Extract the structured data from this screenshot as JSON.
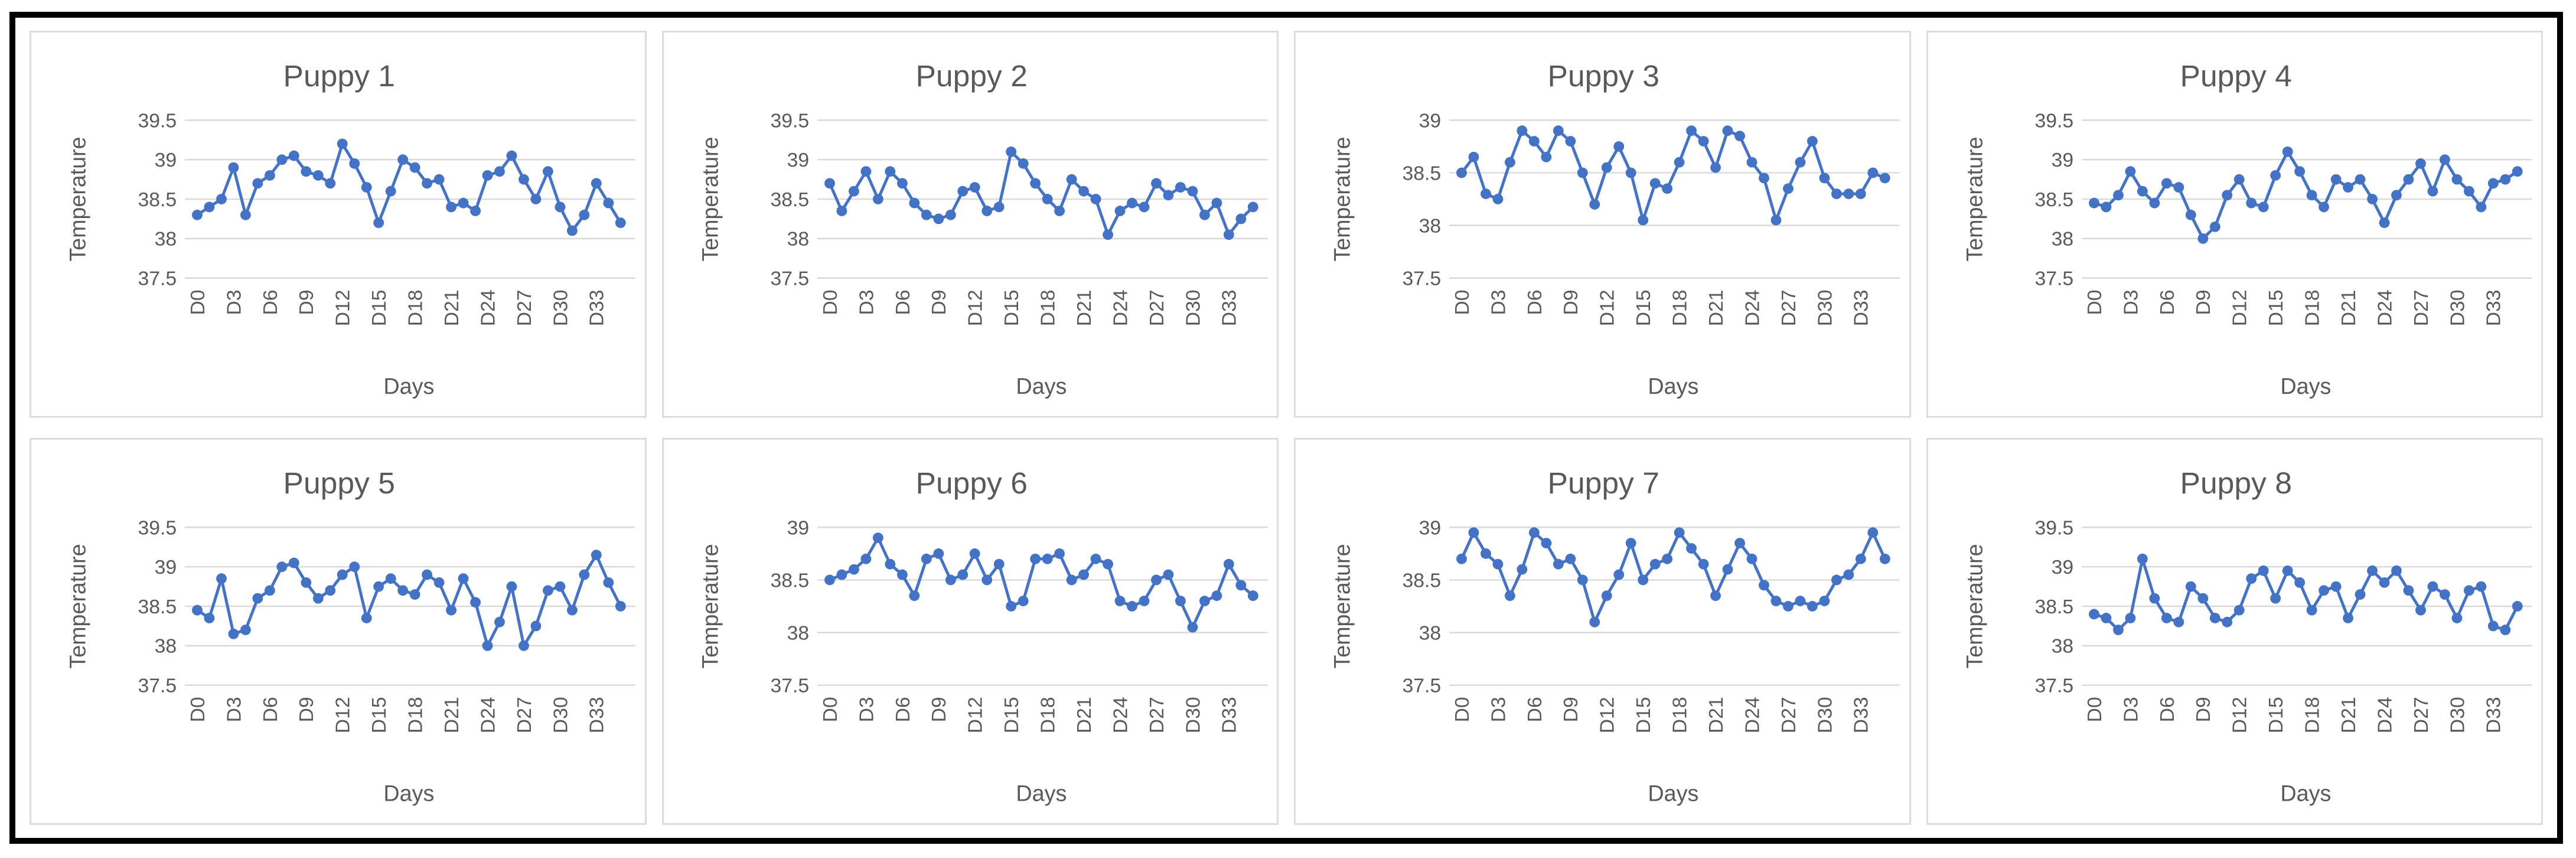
{
  "page": {
    "background_color": "#ffffff",
    "outer_frame_color": "#000000",
    "panel_border_color": "#dcdcdc"
  },
  "colors": {
    "series_line": "#4472C4",
    "marker_fill": "#4472C4",
    "gridline": "#d9d9d9",
    "title_text": "#595959",
    "tick_text": "#595959"
  },
  "shared_axis": {
    "x_title": "Days",
    "y_title": "Temperature",
    "x_tick_labels": [
      "D0",
      "D3",
      "D6",
      "D9",
      "D12",
      "D15",
      "D18",
      "D21",
      "D24",
      "D27",
      "D30",
      "D33"
    ],
    "tick_interval_days": 3,
    "n_points": 36,
    "grid": "horizontal-only",
    "legend": "none"
  },
  "chart_data": [
    {
      "type": "line",
      "title": "Puppy 1",
      "xlabel": "Days",
      "ylabel": "Temperature",
      "ylim": [
        37.5,
        39.5
      ],
      "yticks": [
        37.5,
        38,
        38.5,
        39,
        39.5
      ],
      "values": [
        38.3,
        38.4,
        38.5,
        38.9,
        38.3,
        38.7,
        38.8,
        39.0,
        39.05,
        38.85,
        38.8,
        38.7,
        39.2,
        38.95,
        38.65,
        38.2,
        38.6,
        39.0,
        38.9,
        38.7,
        38.75,
        38.4,
        38.45,
        38.35,
        38.8,
        38.85,
        39.05,
        38.75,
        38.5,
        38.85,
        38.4,
        38.1,
        38.3,
        38.7,
        38.45,
        38.2
      ]
    },
    {
      "type": "line",
      "title": "Puppy 2",
      "xlabel": "Days",
      "ylabel": "Temperature",
      "ylim": [
        37.5,
        39.5
      ],
      "yticks": [
        37.5,
        38,
        38.5,
        39,
        39.5
      ],
      "values": [
        38.7,
        38.35,
        38.6,
        38.85,
        38.5,
        38.85,
        38.7,
        38.45,
        38.3,
        38.25,
        38.3,
        38.6,
        38.65,
        38.35,
        38.4,
        39.1,
        38.95,
        38.7,
        38.5,
        38.35,
        38.75,
        38.6,
        38.5,
        38.05,
        38.35,
        38.45,
        38.4,
        38.7,
        38.55,
        38.65,
        38.6,
        38.3,
        38.45,
        38.05,
        38.25,
        38.4
      ]
    },
    {
      "type": "line",
      "title": "Puppy 3",
      "xlabel": "Days",
      "ylabel": "Temperature",
      "ylim": [
        37.5,
        39
      ],
      "yticks": [
        37.5,
        38,
        38.5,
        39
      ],
      "values": [
        38.5,
        38.65,
        38.3,
        38.25,
        38.6,
        38.9,
        38.8,
        38.65,
        38.9,
        38.8,
        38.5,
        38.2,
        38.55,
        38.75,
        38.5,
        38.05,
        38.4,
        38.35,
        38.6,
        38.9,
        38.8,
        38.55,
        38.9,
        38.85,
        38.6,
        38.45,
        38.05,
        38.35,
        38.6,
        38.8,
        38.45,
        38.3,
        38.3,
        38.3,
        38.5,
        38.45
      ]
    },
    {
      "type": "line",
      "title": "Puppy 4",
      "xlabel": "Days",
      "ylabel": "Temperature",
      "ylim": [
        37.5,
        39.5
      ],
      "yticks": [
        37.5,
        38,
        38.5,
        39,
        39.5
      ],
      "values": [
        38.45,
        38.4,
        38.55,
        38.85,
        38.6,
        38.45,
        38.7,
        38.65,
        38.3,
        38.0,
        38.15,
        38.55,
        38.75,
        38.45,
        38.4,
        38.8,
        39.1,
        38.85,
        38.55,
        38.4,
        38.75,
        38.65,
        38.75,
        38.5,
        38.2,
        38.55,
        38.75,
        38.95,
        38.6,
        39.0,
        38.75,
        38.6,
        38.4,
        38.7,
        38.75,
        38.85
      ]
    },
    {
      "type": "line",
      "title": "Puppy 5",
      "xlabel": "Days",
      "ylabel": "Temperature",
      "ylim": [
        37.5,
        39.5
      ],
      "yticks": [
        37.5,
        38,
        38.5,
        39,
        39.5
      ],
      "values": [
        38.45,
        38.35,
        38.85,
        38.15,
        38.2,
        38.6,
        38.7,
        39.0,
        39.05,
        38.8,
        38.6,
        38.7,
        38.9,
        39.0,
        38.35,
        38.75,
        38.85,
        38.7,
        38.65,
        38.9,
        38.8,
        38.45,
        38.85,
        38.55,
        38.0,
        38.3,
        38.75,
        38.0,
        38.25,
        38.7,
        38.75,
        38.45,
        38.9,
        39.15,
        38.8,
        38.5
      ]
    },
    {
      "type": "line",
      "title": "Puppy 6",
      "xlabel": "Days",
      "ylabel": "Temperature",
      "ylim": [
        37.5,
        39
      ],
      "yticks": [
        37.5,
        38,
        38.5,
        39
      ],
      "values": [
        38.5,
        38.55,
        38.6,
        38.7,
        38.9,
        38.65,
        38.55,
        38.35,
        38.7,
        38.75,
        38.5,
        38.55,
        38.75,
        38.5,
        38.65,
        38.25,
        38.3,
        38.7,
        38.7,
        38.75,
        38.5,
        38.55,
        38.7,
        38.65,
        38.3,
        38.25,
        38.3,
        38.5,
        38.55,
        38.3,
        38.05,
        38.3,
        38.35,
        38.65,
        38.45,
        38.35
      ]
    },
    {
      "type": "line",
      "title": "Puppy 7",
      "xlabel": "Days",
      "ylabel": "Temperature",
      "ylim": [
        37.5,
        39
      ],
      "yticks": [
        37.5,
        38,
        38.5,
        39
      ],
      "values": [
        38.7,
        38.95,
        38.75,
        38.65,
        38.35,
        38.6,
        38.95,
        38.85,
        38.65,
        38.7,
        38.5,
        38.1,
        38.35,
        38.55,
        38.85,
        38.5,
        38.65,
        38.7,
        38.95,
        38.8,
        38.65,
        38.35,
        38.6,
        38.85,
        38.7,
        38.45,
        38.3,
        38.25,
        38.3,
        38.25,
        38.3,
        38.5,
        38.55,
        38.7,
        38.95,
        38.7
      ]
    },
    {
      "type": "line",
      "title": "Puppy 8",
      "xlabel": "Days",
      "ylabel": "Temperature",
      "ylim": [
        37.5,
        39.5
      ],
      "yticks": [
        37.5,
        38,
        38.5,
        39,
        39.5
      ],
      "values": [
        38.4,
        38.35,
        38.2,
        38.35,
        39.1,
        38.6,
        38.35,
        38.3,
        38.75,
        38.6,
        38.35,
        38.3,
        38.45,
        38.85,
        38.95,
        38.6,
        38.95,
        38.8,
        38.45,
        38.7,
        38.75,
        38.35,
        38.65,
        38.95,
        38.8,
        38.95,
        38.7,
        38.45,
        38.75,
        38.65,
        38.35,
        38.7,
        38.75,
        38.25,
        38.2,
        38.5
      ]
    }
  ]
}
